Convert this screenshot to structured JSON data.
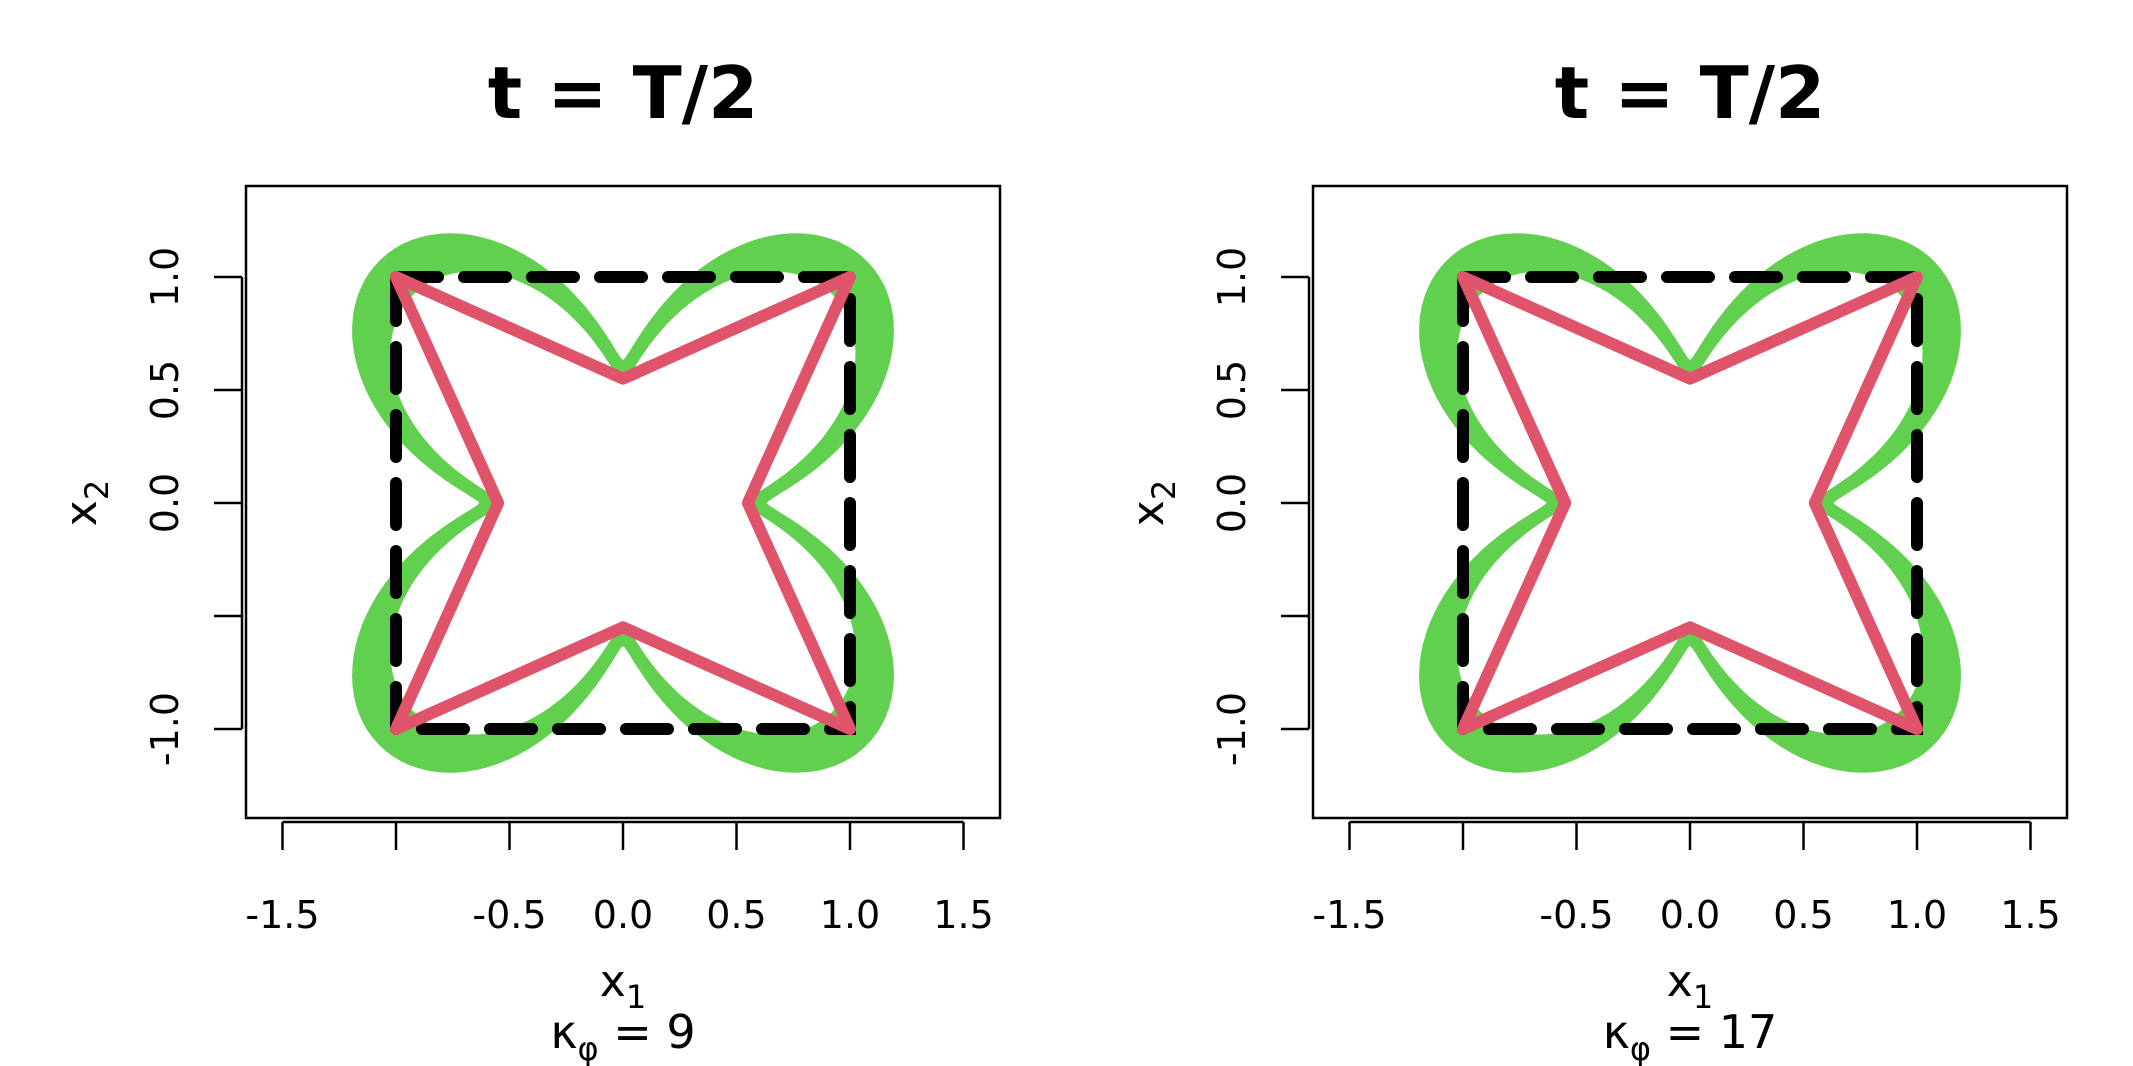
{
  "colors": {
    "envelope": "#61D04F",
    "polygon": "#DF536B",
    "square": "#000000",
    "frame": "#000000"
  },
  "chart_data": [
    {
      "type": "line",
      "title": "t = T/2",
      "xlabel": "x",
      "xlabel_sub": "1",
      "ylabel": "x",
      "ylabel_sub": "2",
      "caption_symbol": "κ",
      "caption_sub": "φ",
      "caption_text": " = 9",
      "xlim": [
        -1.67,
        1.67
      ],
      "ylim": [
        -1.4,
        1.4
      ],
      "x_tick_values": [
        -1.5,
        -1.0,
        -0.5,
        0.0,
        0.5,
        1.0,
        1.5
      ],
      "x_tick_labels": [
        "-1.5",
        "",
        "-0.5",
        "0.0",
        "0.5",
        "1.0",
        "1.5"
      ],
      "y_tick_values": [
        -1.0,
        -0.5,
        0.0,
        0.5,
        1.0
      ],
      "y_tick_labels": [
        "-1.0",
        "",
        "0.0",
        "0.5",
        "1.0"
      ],
      "grid": false,
      "series": [
        {
          "style": "dashed-square",
          "x": [
            -1,
            1,
            1,
            -1,
            -1
          ],
          "y": [
            1,
            1,
            -1,
            -1,
            1
          ]
        },
        {
          "style": "polygon",
          "x": [
            -1,
            0,
            1,
            0.55,
            1,
            0,
            -1,
            -0.55,
            -1
          ],
          "y": [
            1,
            0.55,
            1,
            0,
            -1,
            -0.55,
            -1,
            0,
            1
          ]
        }
      ]
    },
    {
      "type": "line",
      "title": "t = T/2",
      "xlabel": "x",
      "xlabel_sub": "1",
      "ylabel": "x",
      "ylabel_sub": "2",
      "caption_symbol": "κ",
      "caption_sub": "φ",
      "caption_text": " = 17",
      "xlim": [
        -1.67,
        1.67
      ],
      "ylim": [
        -1.4,
        1.4
      ],
      "x_tick_values": [
        -1.5,
        -1.0,
        -0.5,
        0.0,
        0.5,
        1.0,
        1.5
      ],
      "x_tick_labels": [
        "-1.5",
        "",
        "-0.5",
        "0.0",
        "0.5",
        "1.0",
        "1.5"
      ],
      "y_tick_values": [
        -1.0,
        -0.5,
        0.0,
        0.5,
        1.0
      ],
      "y_tick_labels": [
        "-1.0",
        "",
        "0.0",
        "0.5",
        "1.0"
      ],
      "grid": false,
      "series": [
        {
          "style": "dashed-square",
          "x": [
            -1,
            1,
            1,
            -1,
            -1
          ],
          "y": [
            1,
            1,
            -1,
            -1,
            1
          ]
        },
        {
          "style": "polygon",
          "x": [
            -1,
            0,
            1,
            0.55,
            1,
            0,
            -1,
            -0.55,
            -1
          ],
          "y": [
            1,
            0.55,
            1,
            0,
            -1,
            -0.55,
            -1,
            0,
            1
          ]
        }
      ]
    }
  ]
}
